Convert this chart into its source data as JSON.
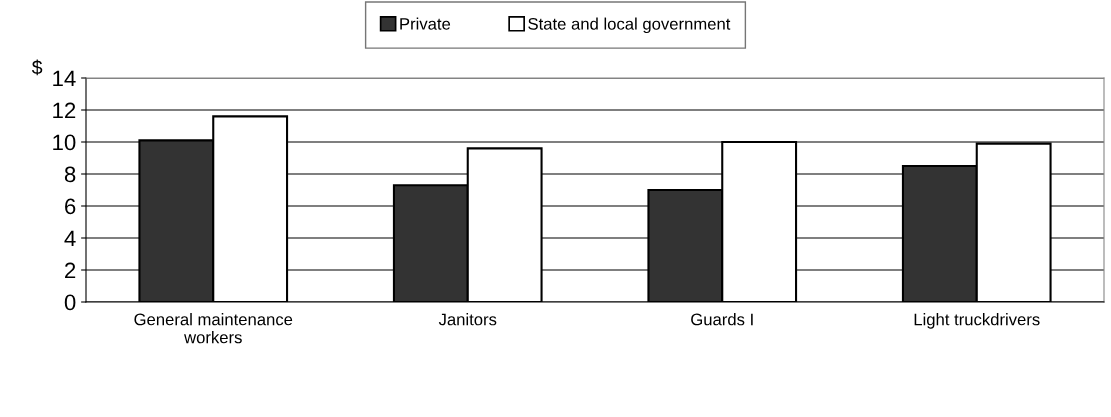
{
  "chart_data": {
    "type": "bar",
    "ylabel": "$",
    "categories": [
      "General maintenance\nworkers",
      "Janitors",
      "Guards I",
      "Light truckdrivers"
    ],
    "series": [
      {
        "name": "Private",
        "color": "#333333",
        "values": [
          10.1,
          7.3,
          7.0,
          8.5
        ]
      },
      {
        "name": "State and local government",
        "color": "#ffffff",
        "values": [
          11.6,
          9.6,
          10.0,
          9.9
        ]
      }
    ],
    "ylim": [
      0,
      14
    ],
    "yticks": [
      0,
      2,
      4,
      6,
      8,
      10,
      12,
      14
    ],
    "grid": "y",
    "legend": "top"
  }
}
